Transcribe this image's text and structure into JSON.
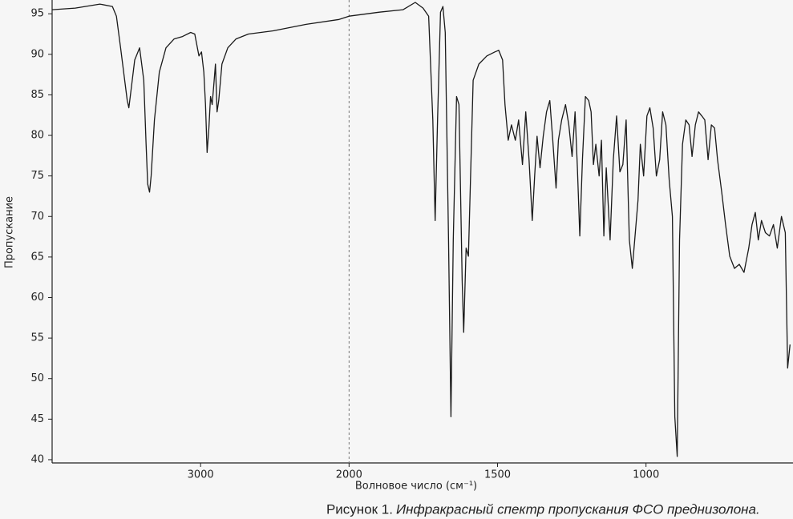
{
  "chart_data": {
    "type": "line",
    "y_label": "Пропускание",
    "x_label": "Волновое  число (см⁻¹)",
    "caption_label": "Рисунок 1.",
    "caption": "Инфракрасный спектр пропускания ФСО преднизолона.",
    "color": "#1a1a1a",
    "xlim": [
      4000,
      505
    ],
    "x_reversed": true,
    "x_scale_break": 2000,
    "ylim": [
      39.6,
      96.7
    ],
    "xticks": [
      3000,
      2000,
      1500,
      1000
    ],
    "yticks": [
      40,
      45,
      50,
      55,
      60,
      65,
      70,
      75,
      80,
      85,
      90,
      95
    ],
    "x": [
      4000,
      3844,
      3678,
      3594,
      3567,
      3539,
      3511,
      3494,
      3483,
      3467,
      3444,
      3411,
      3383,
      3367,
      3356,
      3344,
      3333,
      3311,
      3278,
      3233,
      3178,
      3122,
      3067,
      3039,
      3011,
      2994,
      2978,
      2967,
      2956,
      2944,
      2933,
      2922,
      2911,
      2900,
      2889,
      2878,
      2856,
      2817,
      2761,
      2678,
      2511,
      2289,
      2067,
      2000,
      1898,
      1818,
      1777,
      1751,
      1732,
      1718,
      1710,
      1702,
      1692,
      1684,
      1676,
      1665,
      1657,
      1649,
      1638,
      1630,
      1619,
      1614,
      1606,
      1598,
      1582,
      1563,
      1536,
      1509,
      1496,
      1483,
      1475,
      1464,
      1453,
      1440,
      1429,
      1416,
      1405,
      1394,
      1383,
      1375,
      1367,
      1357,
      1346,
      1335,
      1324,
      1314,
      1303,
      1295,
      1284,
      1271,
      1260,
      1249,
      1239,
      1231,
      1223,
      1214,
      1204,
      1193,
      1185,
      1177,
      1169,
      1158,
      1150,
      1142,
      1134,
      1121,
      1110,
      1099,
      1088,
      1078,
      1067,
      1056,
      1046,
      1038,
      1027,
      1019,
      1008,
      997,
      987,
      976,
      965,
      954,
      944,
      933,
      922,
      911,
      903,
      895,
      887,
      877,
      866,
      855,
      845,
      834,
      823,
      812,
      802,
      791,
      780,
      769,
      759,
      745,
      732,
      718,
      702,
      686,
      670,
      654,
      643,
      632,
      622,
      611,
      598,
      584,
      571,
      558,
      544,
      531,
      523,
      515
    ],
    "values": [
      95.5,
      95.7,
      96.2,
      95.9,
      94.7,
      90.8,
      86.8,
      84.3,
      83.4,
      85.8,
      89.3,
      90.8,
      86.8,
      78.9,
      74,
      73,
      75,
      81.9,
      87.8,
      90.8,
      91.9,
      92.2,
      92.7,
      92.5,
      89.8,
      90.3,
      87.8,
      83.8,
      77.9,
      80.9,
      84.8,
      83.8,
      86.3,
      88.8,
      82.9,
      84.3,
      88.8,
      90.8,
      91.9,
      92.5,
      92.9,
      93.7,
      94.3,
      94.7,
      95.2,
      95.5,
      96.4,
      95.7,
      94.7,
      81.9,
      69.5,
      81.9,
      95.2,
      95.9,
      92.7,
      67.1,
      45.3,
      67.1,
      84.8,
      83.8,
      62.1,
      55.7,
      66.1,
      65.1,
      86.8,
      88.8,
      89.8,
      90.3,
      90.5,
      89.3,
      83.8,
      79.4,
      81.3,
      79.4,
      81.9,
      76.4,
      82.9,
      77,
      69.5,
      75,
      79.9,
      76,
      79.9,
      82.9,
      84.3,
      79.4,
      73.5,
      79.4,
      81.9,
      83.8,
      81.3,
      77.4,
      82.9,
      76,
      67.6,
      77,
      84.8,
      84.3,
      82.9,
      76.4,
      78.9,
      75,
      79.4,
      67.6,
      76,
      67.1,
      77,
      82.4,
      75.5,
      76.4,
      81.9,
      67.1,
      63.6,
      67.1,
      72,
      78.9,
      75,
      82.4,
      83.4,
      80.9,
      75,
      77,
      82.9,
      81.3,
      74.5,
      70,
      45.3,
      40.4,
      67.1,
      78.9,
      81.9,
      81.3,
      77.4,
      81.3,
      82.9,
      82.4,
      81.9,
      77,
      81.3,
      80.9,
      77,
      73,
      69,
      65.1,
      63.6,
      64.1,
      63.1,
      66.1,
      69,
      70.5,
      67.1,
      69.5,
      68,
      67.6,
      69,
      66.1,
      70,
      68,
      51.3,
      54.2
    ]
  }
}
